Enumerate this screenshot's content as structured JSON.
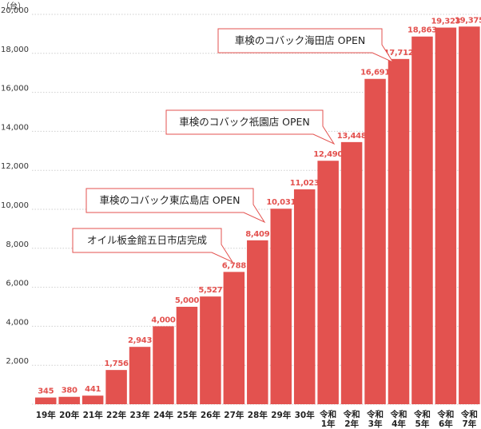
{
  "chart_data": {
    "type": "bar",
    "unit_label": "（台）",
    "categories": [
      [
        "19年"
      ],
      [
        "20年"
      ],
      [
        "21年"
      ],
      [
        "22年"
      ],
      [
        "23年"
      ],
      [
        "24年"
      ],
      [
        "25年"
      ],
      [
        "26年"
      ],
      [
        "27年"
      ],
      [
        "28年"
      ],
      [
        "29年"
      ],
      [
        "30年"
      ],
      [
        "令和",
        "1年"
      ],
      [
        "令和",
        "2年"
      ],
      [
        "令和",
        "3年"
      ],
      [
        "令和",
        "4年"
      ],
      [
        "令和",
        "5年"
      ],
      [
        "令和",
        "6年"
      ],
      [
        "令和",
        "7年"
      ]
    ],
    "values": [
      345,
      380,
      441,
      1756,
      2943,
      4000,
      5000,
      5527,
      6788,
      8409,
      10031,
      11023,
      12490,
      13448,
      16691,
      17712,
      18863,
      19323,
      19375
    ],
    "value_labels": [
      "345",
      "380",
      "441",
      "1,756",
      "2,943",
      "4,000",
      "5,000",
      "5,527",
      "6,788",
      "8,409",
      "10,031",
      "11,023",
      "12,490",
      "13,448",
      "16,691",
      "17,712",
      "18,863",
      "19,323",
      "19,375"
    ],
    "yticks": [
      2000,
      4000,
      6000,
      8000,
      10000,
      12000,
      14000,
      16000,
      18000,
      20000
    ],
    "ytick_labels": [
      "2,000",
      "4,000",
      "6,000",
      "8,000",
      "10,000",
      "12,000",
      "14,000",
      "16,000",
      "18,000",
      "20,000"
    ],
    "ylim": [
      0,
      20000
    ],
    "bar_color": "#e3524f",
    "grid": true,
    "annotations": [
      {
        "text": "オイル板金館五日市店完成",
        "index": 8
      },
      {
        "text": "車検のコバック東広島店 OPEN",
        "index": 9
      },
      {
        "text": "車検のコバック祇園店 OPEN",
        "index": 12
      },
      {
        "text": "車検のコバック海田店 OPEN",
        "index": 16
      }
    ]
  }
}
